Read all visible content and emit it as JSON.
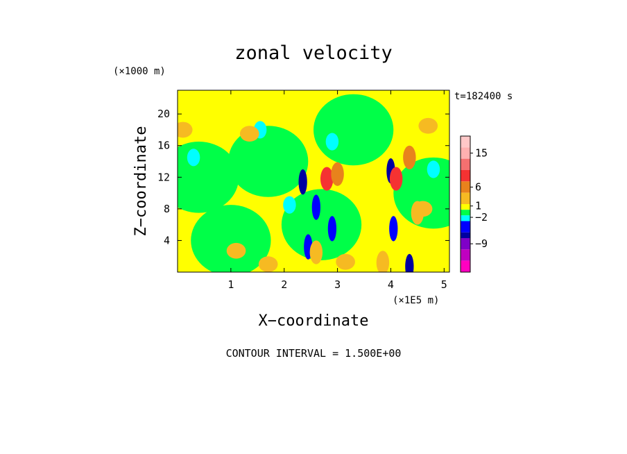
{
  "chart_data": {
    "type": "heatmap",
    "title": "zonal velocity",
    "xlabel": "X−coordinate",
    "ylabel": "Z−coordinate",
    "x_unit_label": "(×1E5 m)",
    "y_unit_label": "(×1000 m)",
    "time_label": "t=182400 s",
    "contour_interval_label": "CONTOUR INTERVAL = 1.500E+00",
    "xlim": [
      0,
      5.1
    ],
    "ylim": [
      0,
      23
    ],
    "x_ticks": [
      "1",
      "2",
      "3",
      "4",
      "5"
    ],
    "x_tick_values": [
      1,
      2,
      3,
      4,
      5
    ],
    "y_ticks": [
      "4",
      "8",
      "12",
      "16",
      "20"
    ],
    "y_tick_values": [
      4,
      8,
      12,
      16,
      20
    ],
    "colorbar": {
      "tick_labels": [
        "15",
        "6",
        "1",
        "−2",
        "−9"
      ],
      "tick_values": [
        15,
        6,
        1,
        -2,
        -9
      ],
      "levels": [
        {
          "color": "#ffc8c8",
          "lo": 16.5,
          "hi": 19.5
        },
        {
          "color": "#ffb0b0",
          "lo": 13.5,
          "hi": 16.5
        },
        {
          "color": "#f57070",
          "lo": 10.5,
          "hi": 13.5
        },
        {
          "color": "#f53232",
          "lo": 7.5,
          "hi": 10.5
        },
        {
          "color": "#e8821c",
          "lo": 4.5,
          "hi": 7.5
        },
        {
          "color": "#f6ba22",
          "lo": 1.5,
          "hi": 4.5
        },
        {
          "color": "#ffff00",
          "lo": 0,
          "hi": 1.5
        },
        {
          "color": "#00ff48",
          "lo": -1.5,
          "hi": 0
        },
        {
          "color": "#00ffff",
          "lo": -3,
          "hi": -1.5
        },
        {
          "color": "#0000ff",
          "lo": -6,
          "hi": -3
        },
        {
          "color": "#0000a0",
          "lo": -7.5,
          "hi": -6
        },
        {
          "color": "#7f00c8",
          "lo": -10.5,
          "hi": -7.5
        },
        {
          "color": "#c000c0",
          "lo": -13.5,
          "hi": -10.5
        },
        {
          "color": "#ff00c0",
          "lo": -16.5,
          "hi": -13.5
        }
      ]
    },
    "features": [
      {
        "kind": "background_band",
        "x": 0.4,
        "z": 12,
        "value": -0.7
      },
      {
        "kind": "background_band",
        "x": 1.0,
        "z": 4,
        "value": -0.7
      },
      {
        "kind": "background_band",
        "x": 3.3,
        "z": 18,
        "value": -0.7
      },
      {
        "kind": "background_band",
        "x": 4.8,
        "z": 10,
        "value": -0.7
      },
      {
        "kind": "background_band",
        "x": 2.7,
        "z": 6,
        "value": -0.5
      },
      {
        "kind": "background_band",
        "x": 1.7,
        "z": 14,
        "value": -0.6
      },
      {
        "kind": "cyan_patch",
        "x": 0.3,
        "z": 14.5,
        "value": -2.2
      },
      {
        "kind": "cyan_patch",
        "x": 1.55,
        "z": 18,
        "value": -2.0
      },
      {
        "kind": "cyan_patch",
        "x": 4.8,
        "z": 13,
        "value": -2.2
      },
      {
        "kind": "cyan_patch",
        "x": 2.1,
        "z": 8.5,
        "value": -2.0
      },
      {
        "kind": "cyan_patch",
        "x": 2.9,
        "z": 16.5,
        "value": -2.0
      },
      {
        "kind": "orange_patch",
        "x": 0.1,
        "z": 18,
        "value": 3.0
      },
      {
        "kind": "orange_patch",
        "x": 1.35,
        "z": 17.5,
        "value": 3.0
      },
      {
        "kind": "orange_patch",
        "x": 4.7,
        "z": 18.5,
        "value": 2.5
      },
      {
        "kind": "orange_patch",
        "x": 4.6,
        "z": 8.0,
        "value": 3.2
      },
      {
        "kind": "orange_patch",
        "x": 1.7,
        "z": 1.0,
        "value": 3.0
      },
      {
        "kind": "orange_patch",
        "x": 3.15,
        "z": 1.3,
        "value": 2.5
      },
      {
        "kind": "orange_patch",
        "x": 1.1,
        "z": 2.7,
        "value": 2.6
      },
      {
        "kind": "core_negative",
        "x": 2.35,
        "z": 11.4,
        "value": -6.5
      },
      {
        "kind": "core_positive",
        "x": 2.8,
        "z": 11.8,
        "value": 9.0
      },
      {
        "kind": "core_positive",
        "x": 3.0,
        "z": 12.4,
        "value": 6.0
      },
      {
        "kind": "core_negative",
        "x": 2.6,
        "z": 8.2,
        "value": -5.0
      },
      {
        "kind": "core_negative",
        "x": 2.9,
        "z": 5.5,
        "value": -4.5
      },
      {
        "kind": "core_negative",
        "x": 2.45,
        "z": 3.2,
        "value": -3.5
      },
      {
        "kind": "core_positive",
        "x": 2.6,
        "z": 2.5,
        "value": 3.0
      },
      {
        "kind": "core_negative",
        "x": 4.0,
        "z": 12.8,
        "value": -6.5
      },
      {
        "kind": "core_positive",
        "x": 4.1,
        "z": 11.8,
        "value": 9.5
      },
      {
        "kind": "core_positive",
        "x": 4.35,
        "z": 14.5,
        "value": 5.0
      },
      {
        "kind": "core_negative",
        "x": 4.05,
        "z": 5.5,
        "value": -5.5
      },
      {
        "kind": "core_negative",
        "x": 4.35,
        "z": 0.7,
        "value": -7.0
      },
      {
        "kind": "core_positive",
        "x": 3.85,
        "z": 1.2,
        "value": 3.0
      },
      {
        "kind": "core_positive",
        "x": 4.5,
        "z": 7.5,
        "value": 3.5
      }
    ]
  }
}
